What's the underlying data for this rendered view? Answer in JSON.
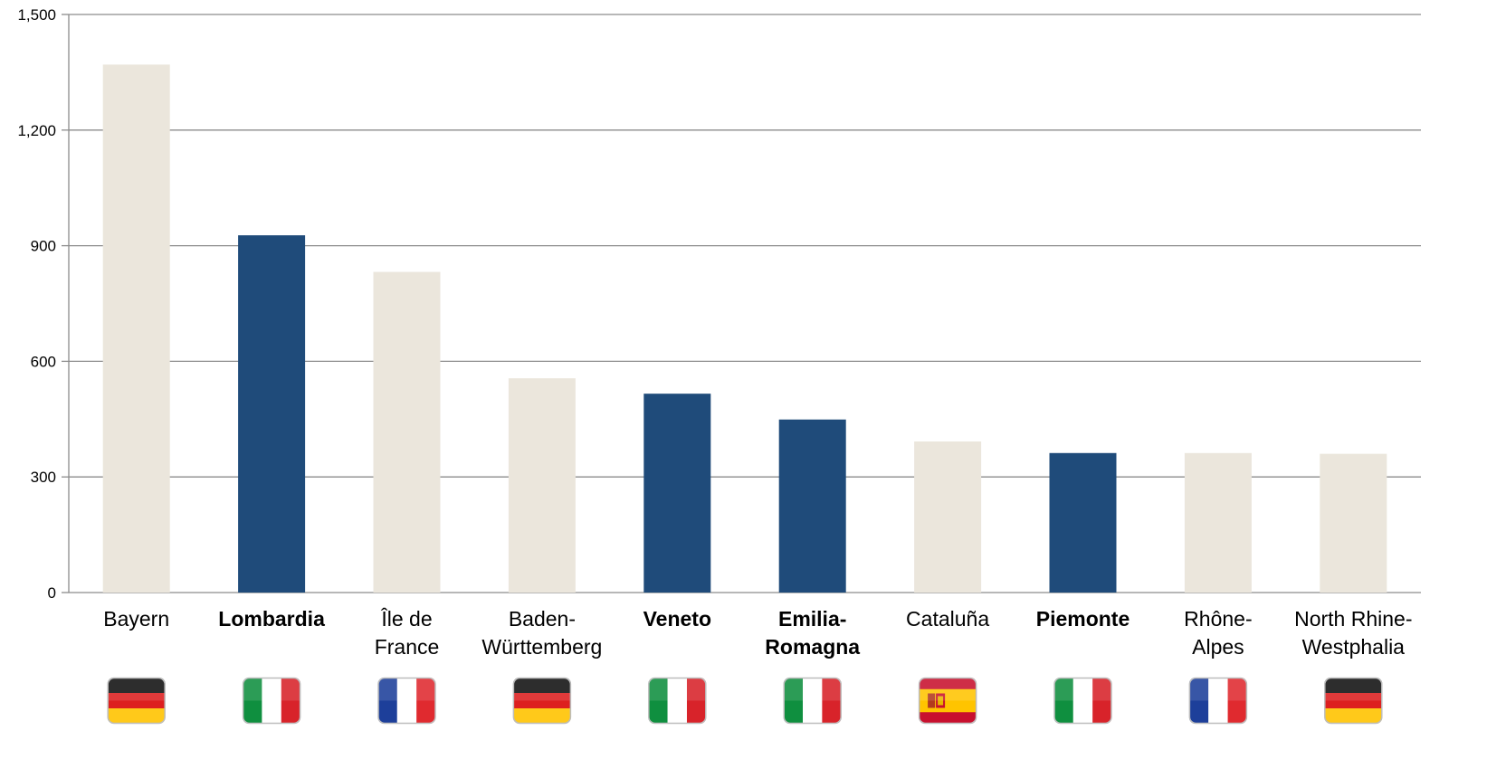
{
  "chart_data": {
    "type": "bar",
    "categories": [
      {
        "lines": [
          "Bayern"
        ],
        "highlight": false,
        "flag": "germany-flag-icon"
      },
      {
        "lines": [
          "Lombardia"
        ],
        "highlight": true,
        "flag": "italy-flag-icon"
      },
      {
        "lines": [
          "Île de",
          "France"
        ],
        "highlight": false,
        "flag": "france-flag-icon"
      },
      {
        "lines": [
          "Baden-",
          "Württemberg"
        ],
        "highlight": false,
        "flag": "germany-flag-icon"
      },
      {
        "lines": [
          "Veneto"
        ],
        "highlight": true,
        "flag": "italy-flag-icon"
      },
      {
        "lines": [
          "Emilia-",
          "Romagna"
        ],
        "highlight": true,
        "flag": "italy-flag-icon"
      },
      {
        "lines": [
          "Cataluña"
        ],
        "highlight": false,
        "flag": "spain-flag-icon"
      },
      {
        "lines": [
          "Piemonte"
        ],
        "highlight": true,
        "flag": "italy-flag-icon"
      },
      {
        "lines": [
          "Rhône-",
          "Alpes"
        ],
        "highlight": false,
        "flag": "france-flag-icon"
      },
      {
        "lines": [
          "North Rhine-",
          "Westphalia"
        ],
        "highlight": false,
        "flag": "germany-flag-icon"
      }
    ],
    "values": [
      1370,
      927,
      832,
      556,
      516,
      449,
      392,
      362,
      362,
      360
    ],
    "ylim": [
      0,
      1500
    ],
    "yticks": [
      0,
      300,
      600,
      900,
      1200,
      1500
    ],
    "ytick_labels": [
      "0",
      "300",
      "600",
      "900",
      "1,200",
      "1,500"
    ],
    "grid": true,
    "colors": {
      "highlight": "#1f4b7a",
      "default": "#ebe6dc",
      "grid": "#8c8c8c"
    }
  }
}
